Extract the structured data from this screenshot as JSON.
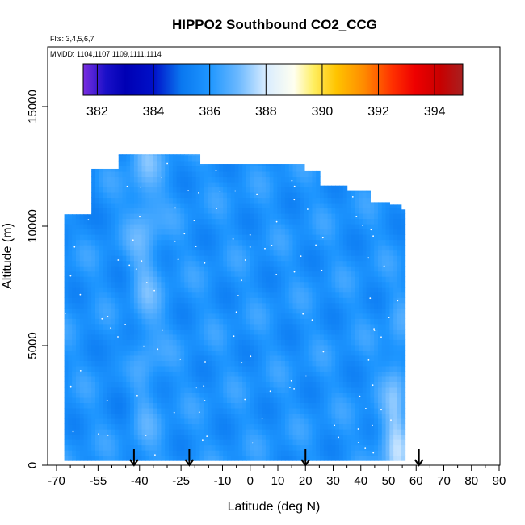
{
  "chart_data": {
    "type": "heatmap",
    "title": "HIPPO2 Southbound CO2_CCG",
    "flights_note": "Flts: 3,4,5,6,7",
    "dates_note": "MMDD: 1104,1107,1109,1111,1114",
    "xlabel": "Latitude (deg N)",
    "ylabel": "Altitude (m)",
    "xlim": [
      -70,
      90
    ],
    "ylim": [
      0,
      17500
    ],
    "x_ticks": [
      -70,
      -55,
      -40,
      -25,
      -10,
      0,
      10,
      20,
      30,
      40,
      50,
      60,
      70,
      80,
      90
    ],
    "x_minor_ticks": [
      -65,
      -60,
      -50,
      -45,
      -35,
      -30,
      -20,
      -15,
      -5,
      5,
      15,
      25,
      35,
      45,
      55,
      65,
      75,
      85
    ],
    "y_ticks": [
      0,
      5000,
      10000,
      15000
    ],
    "colorbar": {
      "min": 381.5,
      "max": 395,
      "tick_values": [
        382,
        384,
        386,
        388,
        390,
        392,
        394
      ],
      "tick_labels": [
        "382",
        "384",
        "386",
        "388",
        "390",
        "392",
        "394"
      ],
      "colors": [
        {
          "v": 381.5,
          "c": "#7a2ee0"
        },
        {
          "v": 382.3,
          "c": "#1a10c8"
        },
        {
          "v": 383.0,
          "c": "#0000b4"
        },
        {
          "v": 384.0,
          "c": "#0010c8"
        },
        {
          "v": 385.0,
          "c": "#0a78f0"
        },
        {
          "v": 386.0,
          "c": "#1e96ff"
        },
        {
          "v": 387.0,
          "c": "#6ab8ff"
        },
        {
          "v": 388.0,
          "c": "#d8ecff"
        },
        {
          "v": 389.0,
          "c": "#fffff0"
        },
        {
          "v": 389.7,
          "c": "#ffee60"
        },
        {
          "v": 390.5,
          "c": "#ffc400"
        },
        {
          "v": 391.5,
          "c": "#ff8a00"
        },
        {
          "v": 392.5,
          "c": "#ff3000"
        },
        {
          "v": 393.3,
          "c": "#ee0000"
        },
        {
          "v": 394.2,
          "c": "#c80000"
        },
        {
          "v": 395.0,
          "c": "#a82020"
        }
      ]
    },
    "arrows_lat": [
      -42,
      -22,
      20,
      61
    ],
    "profiles": [
      {
        "lat": -67,
        "top": 10500
      },
      {
        "lat": -58,
        "top": 12400
      },
      {
        "lat": -48,
        "top": 13000
      },
      {
        "lat": -30,
        "top": 13000
      },
      {
        "lat": -18,
        "top": 12600
      },
      {
        "lat": 0,
        "top": 12600
      },
      {
        "lat": 20,
        "top": 12300
      },
      {
        "lat": 25,
        "top": 11700
      },
      {
        "lat": 35,
        "top": 11500
      },
      {
        "lat": 43,
        "top": 11000
      },
      {
        "lat": 50,
        "top": 10900
      },
      {
        "lat": 55,
        "top": 10700
      },
      {
        "lat": 56,
        "top": 0
      }
    ]
  }
}
